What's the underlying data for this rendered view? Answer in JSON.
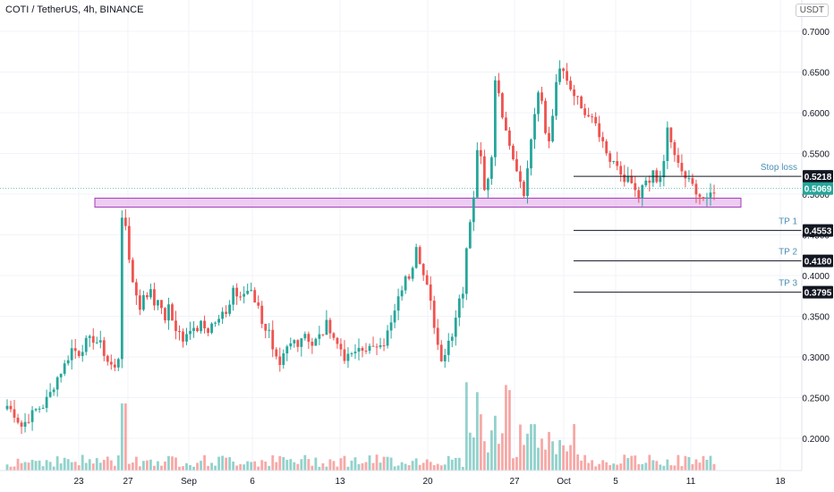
{
  "header": {
    "symbol_text": "COTI / TetherUS, 4h, BINANCE",
    "currency": "USDT"
  },
  "chart_data": {
    "type": "candlestick",
    "title": "COTI / TetherUS, 4h, BINANCE",
    "ylim": [
      0.16,
      0.72
    ],
    "y_ticks": [
      0.2,
      0.25,
      0.3,
      0.35,
      0.4,
      0.45,
      0.5,
      0.55,
      0.6,
      0.65,
      0.7
    ],
    "y_tick_labels": [
      "0.2000",
      "0.2500",
      "0.3000",
      "0.3500",
      "0.4000",
      "0.4500",
      "0.5000",
      "0.5500",
      "0.6000",
      "0.6500",
      "0.7000"
    ],
    "x_tick_labels": [
      "23",
      "27",
      "Sep",
      "6",
      "13",
      "20",
      "27",
      "Oct",
      "5",
      "11",
      "18"
    ],
    "current_price": {
      "value": 0.5069,
      "label": "0.5069"
    },
    "support_zone": {
      "low": 0.484,
      "high": 0.495
    },
    "levels": [
      {
        "name": "Stop loss",
        "value": 0.5218,
        "label": "0.5218"
      },
      {
        "name": "TP 1",
        "value": 0.4553,
        "label": "0.4553"
      },
      {
        "name": "TP 2",
        "value": 0.418,
        "label": "0.4180"
      },
      {
        "name": "TP 3",
        "value": 0.3795,
        "label": "0.3795"
      }
    ],
    "price_path": [
      [
        0,
        0.24
      ],
      [
        2,
        0.23
      ],
      [
        4,
        0.215
      ],
      [
        6,
        0.225
      ],
      [
        8,
        0.235
      ],
      [
        10,
        0.24
      ],
      [
        12,
        0.255
      ],
      [
        14,
        0.275
      ],
      [
        16,
        0.29
      ],
      [
        18,
        0.31
      ],
      [
        20,
        0.305
      ],
      [
        22,
        0.318
      ],
      [
        24,
        0.322
      ],
      [
        26,
        0.315
      ],
      [
        28,
        0.295
      ],
      [
        30,
        0.285
      ],
      [
        31,
        0.3
      ],
      [
        32,
        0.475
      ],
      [
        33,
        0.455
      ],
      [
        34,
        0.42
      ],
      [
        35,
        0.395
      ],
      [
        36,
        0.375
      ],
      [
        37,
        0.36
      ],
      [
        38,
        0.38
      ],
      [
        39,
        0.37
      ],
      [
        40,
        0.385
      ],
      [
        41,
        0.365
      ],
      [
        42,
        0.375
      ],
      [
        43,
        0.355
      ],
      [
        44,
        0.348
      ],
      [
        45,
        0.36
      ],
      [
        46,
        0.345
      ],
      [
        47,
        0.335
      ],
      [
        48,
        0.33
      ],
      [
        49,
        0.32
      ],
      [
        50,
        0.325
      ],
      [
        51,
        0.33
      ],
      [
        52,
        0.34
      ],
      [
        53,
        0.335
      ],
      [
        54,
        0.345
      ],
      [
        55,
        0.34
      ],
      [
        56,
        0.335
      ],
      [
        57,
        0.342
      ],
      [
        58,
        0.34
      ],
      [
        59,
        0.345
      ],
      [
        60,
        0.35
      ],
      [
        61,
        0.355
      ],
      [
        62,
        0.365
      ],
      [
        63,
        0.385
      ],
      [
        64,
        0.375
      ],
      [
        65,
        0.37
      ],
      [
        66,
        0.378
      ],
      [
        67,
        0.382
      ],
      [
        68,
        0.385
      ],
      [
        69,
        0.37
      ],
      [
        70,
        0.36
      ],
      [
        71,
        0.345
      ],
      [
        72,
        0.335
      ],
      [
        73,
        0.33
      ],
      [
        74,
        0.305
      ],
      [
        75,
        0.295
      ],
      [
        76,
        0.285
      ],
      [
        77,
        0.3
      ],
      [
        78,
        0.31
      ],
      [
        79,
        0.315
      ],
      [
        80,
        0.32
      ],
      [
        81,
        0.318
      ],
      [
        82,
        0.325
      ],
      [
        83,
        0.33
      ],
      [
        84,
        0.322
      ],
      [
        85,
        0.315
      ],
      [
        86,
        0.32
      ],
      [
        87,
        0.325
      ],
      [
        88,
        0.33
      ],
      [
        89,
        0.34
      ],
      [
        90,
        0.335
      ],
      [
        91,
        0.325
      ],
      [
        92,
        0.315
      ],
      [
        93,
        0.31
      ],
      [
        94,
        0.3
      ],
      [
        95,
        0.298
      ],
      [
        96,
        0.305
      ],
      [
        97,
        0.302
      ],
      [
        98,
        0.31
      ],
      [
        99,
        0.308
      ],
      [
        100,
        0.312
      ],
      [
        101,
        0.31
      ],
      [
        102,
        0.308
      ],
      [
        103,
        0.315
      ],
      [
        104,
        0.32
      ],
      [
        105,
        0.318
      ],
      [
        106,
        0.33
      ],
      [
        107,
        0.34
      ],
      [
        108,
        0.355
      ],
      [
        109,
        0.37
      ],
      [
        110,
        0.385
      ],
      [
        111,
        0.395
      ],
      [
        112,
        0.4
      ],
      [
        113,
        0.415
      ],
      [
        114,
        0.44
      ],
      [
        115,
        0.42
      ],
      [
        116,
        0.4
      ],
      [
        117,
        0.385
      ],
      [
        118,
        0.365
      ],
      [
        119,
        0.34
      ],
      [
        120,
        0.315
      ],
      [
        121,
        0.3
      ],
      [
        122,
        0.305
      ],
      [
        123,
        0.32
      ],
      [
        124,
        0.33
      ],
      [
        125,
        0.35
      ],
      [
        126,
        0.375
      ],
      [
        127,
        0.38
      ],
      [
        128,
        0.43
      ],
      [
        129,
        0.47
      ],
      [
        130,
        0.5
      ],
      [
        131,
        0.56
      ],
      [
        132,
        0.545
      ],
      [
        133,
        0.51
      ],
      [
        134,
        0.52
      ],
      [
        135,
        0.55
      ],
      [
        136,
        0.64
      ],
      [
        137,
        0.625
      ],
      [
        138,
        0.6
      ],
      [
        139,
        0.575
      ],
      [
        140,
        0.56
      ],
      [
        141,
        0.54
      ],
      [
        142,
        0.53
      ],
      [
        143,
        0.51
      ],
      [
        144,
        0.495
      ],
      [
        145,
        0.53
      ],
      [
        146,
        0.57
      ],
      [
        147,
        0.6
      ],
      [
        148,
        0.63
      ],
      [
        149,
        0.61
      ],
      [
        150,
        0.58
      ],
      [
        151,
        0.57
      ],
      [
        152,
        0.6
      ],
      [
        153,
        0.64
      ],
      [
        154,
        0.66
      ],
      [
        155,
        0.65
      ],
      [
        156,
        0.64
      ],
      [
        157,
        0.63
      ],
      [
        158,
        0.62
      ],
      [
        159,
        0.615
      ],
      [
        160,
        0.605
      ],
      [
        161,
        0.598
      ],
      [
        162,
        0.6
      ],
      [
        163,
        0.59
      ],
      [
        164,
        0.585
      ],
      [
        165,
        0.57
      ],
      [
        166,
        0.56
      ],
      [
        167,
        0.548
      ],
      [
        168,
        0.54
      ],
      [
        169,
        0.535
      ],
      [
        170,
        0.53
      ],
      [
        171,
        0.525
      ],
      [
        172,
        0.515
      ],
      [
        173,
        0.52
      ],
      [
        174,
        0.51
      ],
      [
        175,
        0.5
      ],
      [
        176,
        0.495
      ],
      [
        177,
        0.505
      ],
      [
        178,
        0.515
      ],
      [
        179,
        0.51
      ],
      [
        180,
        0.53
      ],
      [
        181,
        0.52
      ],
      [
        182,
        0.515
      ],
      [
        183,
        0.54
      ],
      [
        184,
        0.58
      ],
      [
        185,
        0.565
      ],
      [
        186,
        0.545
      ],
      [
        187,
        0.535
      ],
      [
        188,
        0.528
      ],
      [
        189,
        0.52
      ],
      [
        190,
        0.515
      ],
      [
        191,
        0.51
      ],
      [
        192,
        0.505
      ],
      [
        193,
        0.498
      ],
      [
        194,
        0.495
      ],
      [
        195,
        0.49
      ],
      [
        196,
        0.5
      ],
      [
        197,
        0.506
      ]
    ]
  }
}
